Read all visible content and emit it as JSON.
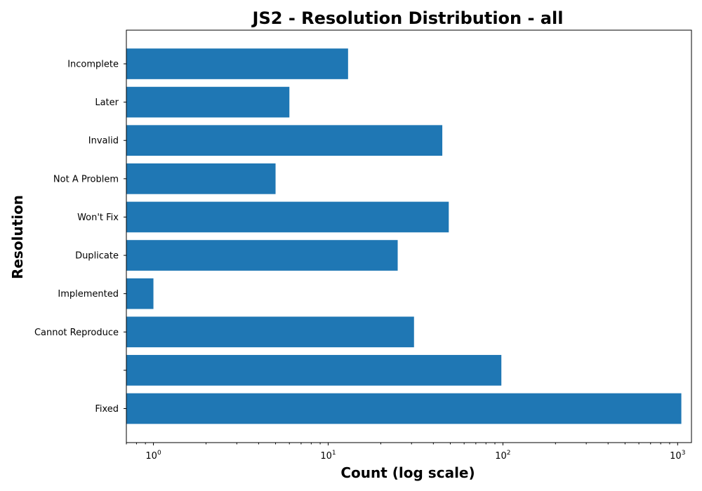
{
  "chart_data": {
    "type": "bar",
    "orientation": "horizontal",
    "title": "JS2 - Resolution Distribution - all",
    "xlabel": "Count (log scale)",
    "ylabel": "Resolution",
    "x_scale": "log",
    "xlim": [
      0.7,
      1200
    ],
    "x_tick_labels": [
      {
        "value": 1,
        "base": "10",
        "exp": "0"
      },
      {
        "value": 10,
        "base": "10",
        "exp": "1"
      },
      {
        "value": 100,
        "base": "10",
        "exp": "2"
      },
      {
        "value": 1000,
        "base": "10",
        "exp": "3"
      }
    ],
    "categories": [
      "Fixed",
      "",
      "Cannot Reproduce",
      "Implemented",
      "Duplicate",
      "Won't Fix",
      "Not A Problem",
      "Invalid",
      "Later",
      "Incomplete"
    ],
    "values": [
      1050,
      98,
      31,
      1,
      25,
      49,
      5,
      45,
      6,
      13
    ],
    "bar_color": "#1f77b4",
    "grid": false,
    "legend": "none"
  }
}
